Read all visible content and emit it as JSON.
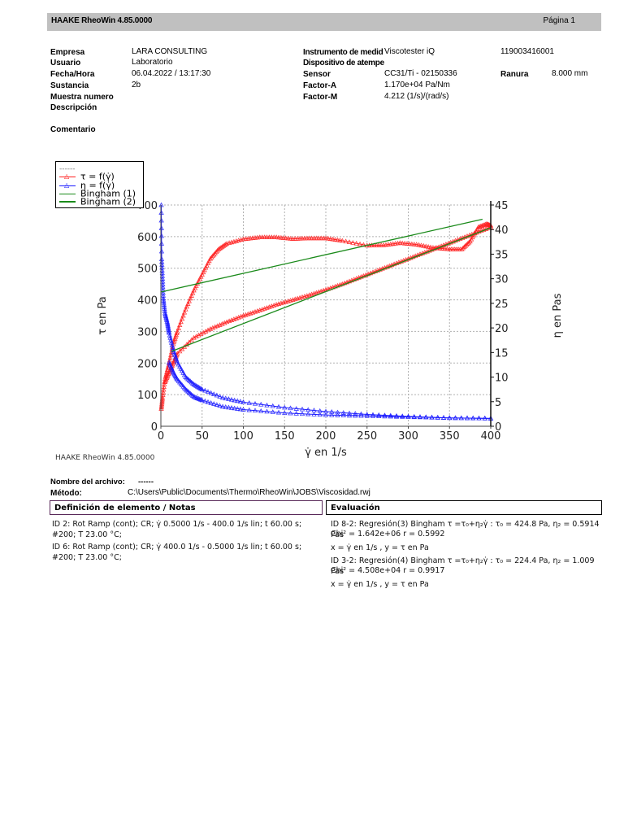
{
  "header": {
    "app_title": "HAAKE RheoWin 4.85.0000",
    "page_label": "Página 1"
  },
  "info_left": [
    {
      "label": "Empresa",
      "value": "LARA CONSULTING"
    },
    {
      "label": "Usuario",
      "value": "Laboratorio"
    },
    {
      "label": "Fecha/Hora",
      "value": "06.04.2022 / 13:17:30"
    },
    {
      "label": "Sustancia",
      "value": "2b"
    },
    {
      "label": "Muestra numero",
      "value": ""
    },
    {
      "label": "Descripción",
      "value": ""
    }
  ],
  "comment_label": "Comentario",
  "info_right": [
    {
      "label": "Instrumento de medid",
      "value": "Viscotester iQ"
    },
    {
      "label": "Dispositivo de atempe",
      "value": ""
    },
    {
      "label": "Sensor",
      "value": "CC31/Ti - 02150336"
    },
    {
      "label": "Factor-A",
      "value": "1.170e+04 Pa/Nm"
    },
    {
      "label": "Factor-M",
      "value": "4.212 (1/s)/(rad/s)"
    }
  ],
  "serial_number": "119003416001",
  "ranura": {
    "label": "Ranura",
    "value": "8.000 mm"
  },
  "chart_data": {
    "type": "scatter",
    "title": "",
    "xlabel": "γ̇ en 1/s",
    "ylabel": "τ en Pa",
    "y2label": "η en Pas",
    "xlim": [
      0,
      400
    ],
    "ylim": [
      0,
      700
    ],
    "y2lim": [
      0,
      45
    ],
    "xticks": [
      0,
      50,
      100,
      150,
      200,
      250,
      300,
      350,
      400
    ],
    "yticks": [
      0,
      100,
      200,
      300,
      400,
      500,
      600,
      700
    ],
    "y2ticks": [
      0,
      5,
      10,
      15,
      20,
      25,
      30,
      35,
      40,
      45
    ],
    "grid": true,
    "legend_position": "top-left outside",
    "legend": [
      "------",
      "τ = f(γ̇)",
      "η = f(γ̇)",
      "Bingham (1)",
      "Bingham (2)"
    ],
    "colors": {
      "tau": "#ff2020",
      "eta": "#1a1aff",
      "bingham": "#1a8a1a",
      "grid": "#b0b0b0"
    },
    "series": [
      {
        "name": "τ = f(γ̇) up-ramp",
        "axis": "left",
        "color": "#ff2020",
        "x": [
          0.5,
          2,
          5,
          10,
          15,
          20,
          30,
          40,
          50,
          60,
          70,
          80,
          100,
          120,
          140,
          160,
          180,
          200,
          220,
          250,
          270,
          290,
          310,
          330,
          350,
          365,
          375,
          385,
          395,
          400
        ],
        "y": [
          55,
          90,
          150,
          200,
          260,
          300,
          370,
          430,
          480,
          530,
          560,
          578,
          592,
          598,
          598,
          593,
          595,
          595,
          587,
          572,
          573,
          580,
          575,
          565,
          560,
          560,
          585,
          630,
          640,
          635
        ]
      },
      {
        "name": "τ = f(γ̇) down-ramp",
        "axis": "left",
        "color": "#ff2020",
        "x": [
          400,
          380,
          360,
          340,
          320,
          300,
          280,
          260,
          240,
          220,
          200,
          180,
          160,
          140,
          120,
          100,
          80,
          60,
          40,
          20,
          15,
          10,
          5
        ],
        "y": [
          630,
          610,
          590,
          570,
          550,
          530,
          510,
          490,
          470,
          450,
          432,
          415,
          400,
          385,
          367,
          350,
          330,
          308,
          280,
          230,
          200,
          170,
          140
        ]
      },
      {
        "name": "η = f(γ̇) up-ramp",
        "axis": "right",
        "color": "#1a1aff",
        "x": [
          0.5,
          1,
          2,
          3,
          5,
          8,
          10,
          15,
          20,
          30,
          40,
          50,
          75,
          100,
          150,
          200,
          250,
          300,
          350,
          400
        ],
        "y": [
          45,
          34,
          30,
          26,
          23,
          21,
          19,
          15.5,
          13,
          10,
          8.5,
          7.5,
          5.8,
          4.9,
          3.8,
          3.0,
          2.4,
          2.0,
          1.7,
          1.6
        ]
      },
      {
        "name": "η = f(γ̇) down-ramp",
        "axis": "right",
        "color": "#1a1aff",
        "x": [
          400,
          350,
          300,
          250,
          200,
          150,
          100,
          75,
          50,
          40,
          30,
          20,
          15,
          10
        ],
        "y": [
          1.6,
          1.7,
          1.9,
          2.1,
          2.3,
          2.7,
          3.4,
          4.0,
          5.3,
          6.0,
          7.5,
          9.5,
          11,
          13
        ]
      },
      {
        "name": "Bingham (1)",
        "axis": "left",
        "color": "#1a8a1a",
        "x": [
          0.5,
          390
        ],
        "y": [
          425,
          655
        ]
      },
      {
        "name": "Bingham (2)",
        "axis": "left",
        "color": "#1a8a1a",
        "x": [
          13,
          400
        ],
        "y": [
          237,
          628
        ]
      }
    ]
  },
  "chart_footer": "HAAKE RheoWin 4.85.0000",
  "file": {
    "name_label": "Nombre del archivo:",
    "name_value": "------",
    "method_label": "Método:",
    "method_value": "C:\\Users\\Public\\Documents\\Thermo\\RheoWin\\JOBS\\Viscosidad.rwj"
  },
  "definition": {
    "title": "Definición de elemento / Notas",
    "items": [
      "ID 2: Rot Ramp (cont); CR; γ̇ 0.5000 1/s - 400.0 1/s lin; t 60.00 s; #200; T 23.00 °C;",
      "ID 6: Rot Ramp (cont); CR; γ̇ 400.0 1/s - 0.5000 1/s lin; t 60.00 s; #200; T 23.00 °C;"
    ]
  },
  "evaluation": {
    "title": "Evaluación",
    "items": [
      {
        "line1": "ID 8-2: Regresión(3) Bingham τ =τ₀+η₂γ̇ : τ₀ = 424.8 Pa, η₂ = 0.5914 Pas",
        "line2": "Chi² = 1.642e+06 r = 0.5992",
        "axes": "x = γ̇  en 1/s ,  y = τ  en Pa"
      },
      {
        "line1": "ID 3-2: Regresión(4) Bingham τ =τ₀+η₂γ̇ : τ₀ = 224.4 Pa, η₂ = 1.009 Pas",
        "line2": "Chi² = 4.508e+04 r = 0.9917",
        "axes": "x = γ̇  en 1/s ,  y = τ  en Pa"
      }
    ]
  }
}
